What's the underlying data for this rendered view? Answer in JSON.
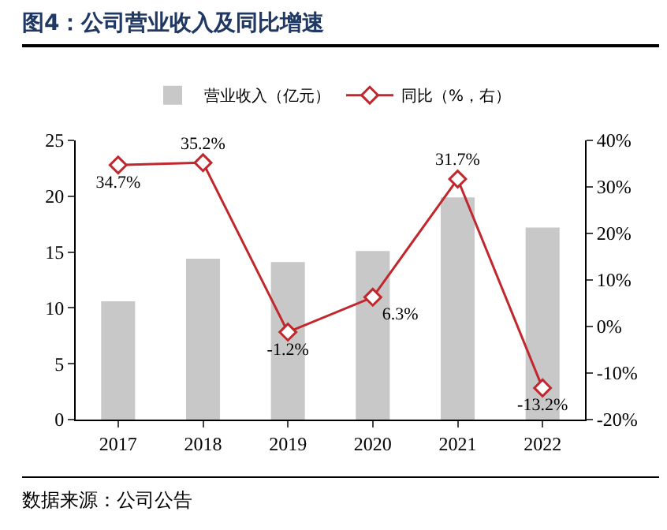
{
  "chart_data": {
    "type": "bar",
    "title": "图4：公司营业收入及同比增速",
    "categories": [
      "2017",
      "2018",
      "2019",
      "2020",
      "2021",
      "2022"
    ],
    "series": [
      {
        "name": "营业收入（亿元）",
        "color": "#c8c8c8",
        "values": [
          10.6,
          14.4,
          14.1,
          15.1,
          19.9,
          17.2
        ]
      },
      {
        "name": "同比（%，右）",
        "type": "line",
        "axis": "y2",
        "color": "#c0282d",
        "marker": "diamond",
        "values": [
          34.7,
          35.2,
          -1.2,
          6.3,
          31.7,
          -13.2
        ],
        "value_labels": [
          "34.7%",
          "35.2%",
          "-1.2%",
          "6.3%",
          "31.7%",
          "-13.2%"
        ]
      }
    ],
    "ylim": [
      0,
      25
    ],
    "yticks": [
      0,
      5,
      10,
      15,
      20,
      25
    ],
    "y2lim": [
      -20,
      40
    ],
    "y2ticks": [
      {
        "value": -20,
        "label": "-20%"
      },
      {
        "value": -10,
        "label": "-10%"
      },
      {
        "value": 0,
        "label": "0%"
      },
      {
        "value": 10,
        "label": "10%"
      },
      {
        "value": 20,
        "label": "20%"
      },
      {
        "value": 30,
        "label": "30%"
      },
      {
        "value": 40,
        "label": "40%"
      }
    ],
    "grid": false,
    "legend": "top",
    "annotations": [
      "数据来源：公司公告"
    ]
  }
}
